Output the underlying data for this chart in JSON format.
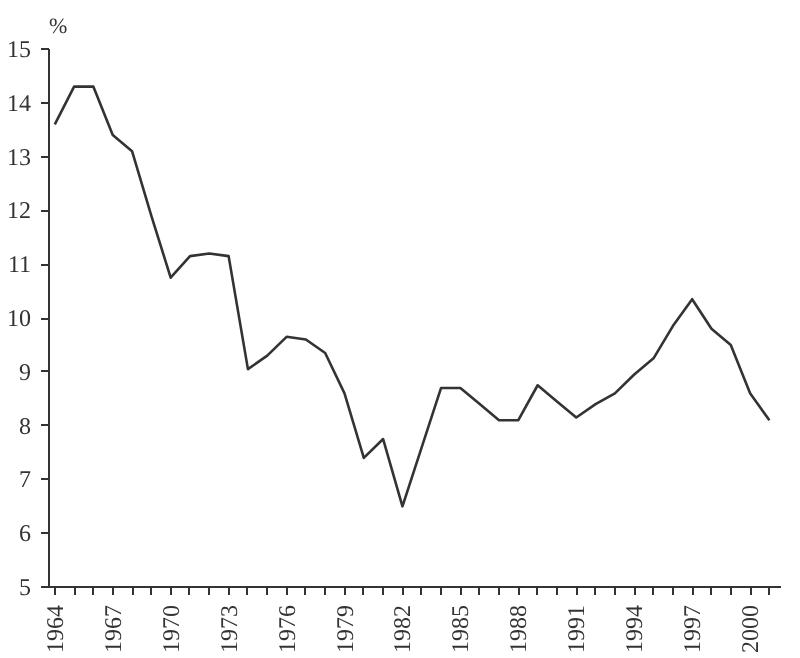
{
  "chart_data": {
    "type": "line",
    "ylabel": "%",
    "color": "#333333",
    "x": [
      1964,
      1965,
      1966,
      1967,
      1968,
      1969,
      1970,
      1971,
      1972,
      1973,
      1974,
      1975,
      1976,
      1977,
      1978,
      1979,
      1980,
      1981,
      1982,
      1983,
      1984,
      1985,
      1986,
      1987,
      1988,
      1989,
      1990,
      1991,
      1992,
      1993,
      1994,
      1995,
      1996,
      1997,
      1998,
      1999,
      2000,
      2001
    ],
    "values": [
      13.6,
      14.3,
      14.3,
      13.4,
      13.1,
      11.9,
      10.75,
      11.15,
      11.2,
      11.15,
      9.05,
      9.3,
      9.65,
      9.6,
      9.35,
      8.6,
      7.4,
      7.75,
      6.5,
      7.6,
      8.7,
      8.7,
      8.4,
      8.1,
      8.1,
      8.75,
      8.45,
      8.15,
      8.4,
      8.6,
      8.95,
      9.25,
      9.85,
      10.35,
      9.8,
      9.5,
      8.6,
      8.1
    ],
    "xlim": [
      1963.7,
      2001.6
    ],
    "ylim": [
      5,
      15
    ],
    "xticks": [
      1964,
      {
        "value": 1965,
        "label": null
      },
      {
        "value": 1966,
        "label": null
      },
      1967,
      {
        "value": 1968,
        "label": null
      },
      {
        "value": 1969,
        "label": null
      },
      1970,
      {
        "value": 1971,
        "label": null
      },
      {
        "value": 1972,
        "label": null
      },
      1973,
      {
        "value": 1974,
        "label": null
      },
      {
        "value": 1975,
        "label": null
      },
      1976,
      {
        "value": 1977,
        "label": null
      },
      {
        "value": 1978,
        "label": null
      },
      1979,
      {
        "value": 1980,
        "label": null
      },
      {
        "value": 1981,
        "label": null
      },
      1982,
      {
        "value": 1983,
        "label": null
      },
      {
        "value": 1984,
        "label": null
      },
      1985,
      {
        "value": 1986,
        "label": null
      },
      {
        "value": 1987,
        "label": null
      },
      1988,
      {
        "value": 1989,
        "label": null
      },
      {
        "value": 1990,
        "label": null
      },
      1991,
      {
        "value": 1992,
        "label": null
      },
      {
        "value": 1993,
        "label": null
      },
      1994,
      {
        "value": 1995,
        "label": null
      },
      {
        "value": 1996,
        "label": null
      },
      1997,
      {
        "value": 1998,
        "label": null
      },
      {
        "value": 1999,
        "label": null
      },
      2000,
      {
        "value": 2001,
        "label": null
      }
    ],
    "yticks": [
      5,
      6,
      7,
      8,
      9,
      10,
      11,
      12,
      13,
      14,
      15
    ],
    "grid": false,
    "marker": "none",
    "line_style": "solid"
  }
}
